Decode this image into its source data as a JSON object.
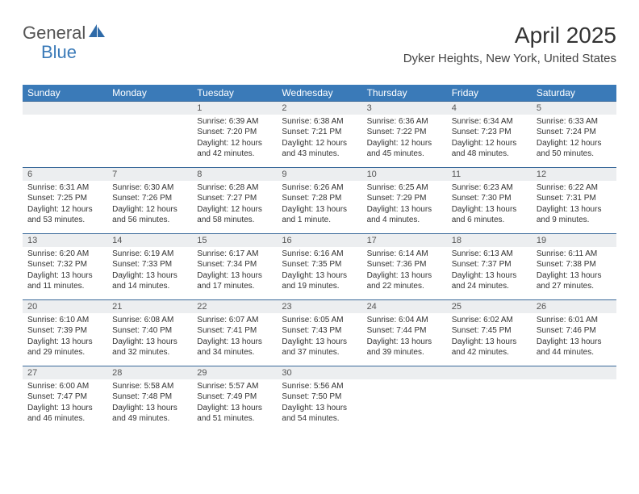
{
  "logo": {
    "part1": "General",
    "part2": "Blue"
  },
  "title": "April 2025",
  "subtitle": "Dyker Heights, New York, United States",
  "colors": {
    "header_bg": "#3a7ab8",
    "header_text": "#ffffff",
    "daynum_bg": "#eceef0",
    "border": "#3a6a9a",
    "text": "#333333",
    "logo_gray": "#555555",
    "logo_blue": "#3a7ab8"
  },
  "weekdays": [
    "Sunday",
    "Monday",
    "Tuesday",
    "Wednesday",
    "Thursday",
    "Friday",
    "Saturday"
  ],
  "weeks": [
    [
      null,
      null,
      {
        "n": "1",
        "sr": "6:39 AM",
        "ss": "7:20 PM",
        "dl": "12 hours and 42 minutes."
      },
      {
        "n": "2",
        "sr": "6:38 AM",
        "ss": "7:21 PM",
        "dl": "12 hours and 43 minutes."
      },
      {
        "n": "3",
        "sr": "6:36 AM",
        "ss": "7:22 PM",
        "dl": "12 hours and 45 minutes."
      },
      {
        "n": "4",
        "sr": "6:34 AM",
        "ss": "7:23 PM",
        "dl": "12 hours and 48 minutes."
      },
      {
        "n": "5",
        "sr": "6:33 AM",
        "ss": "7:24 PM",
        "dl": "12 hours and 50 minutes."
      }
    ],
    [
      {
        "n": "6",
        "sr": "6:31 AM",
        "ss": "7:25 PM",
        "dl": "12 hours and 53 minutes."
      },
      {
        "n": "7",
        "sr": "6:30 AM",
        "ss": "7:26 PM",
        "dl": "12 hours and 56 minutes."
      },
      {
        "n": "8",
        "sr": "6:28 AM",
        "ss": "7:27 PM",
        "dl": "12 hours and 58 minutes."
      },
      {
        "n": "9",
        "sr": "6:26 AM",
        "ss": "7:28 PM",
        "dl": "13 hours and 1 minute."
      },
      {
        "n": "10",
        "sr": "6:25 AM",
        "ss": "7:29 PM",
        "dl": "13 hours and 4 minutes."
      },
      {
        "n": "11",
        "sr": "6:23 AM",
        "ss": "7:30 PM",
        "dl": "13 hours and 6 minutes."
      },
      {
        "n": "12",
        "sr": "6:22 AM",
        "ss": "7:31 PM",
        "dl": "13 hours and 9 minutes."
      }
    ],
    [
      {
        "n": "13",
        "sr": "6:20 AM",
        "ss": "7:32 PM",
        "dl": "13 hours and 11 minutes."
      },
      {
        "n": "14",
        "sr": "6:19 AM",
        "ss": "7:33 PM",
        "dl": "13 hours and 14 minutes."
      },
      {
        "n": "15",
        "sr": "6:17 AM",
        "ss": "7:34 PM",
        "dl": "13 hours and 17 minutes."
      },
      {
        "n": "16",
        "sr": "6:16 AM",
        "ss": "7:35 PM",
        "dl": "13 hours and 19 minutes."
      },
      {
        "n": "17",
        "sr": "6:14 AM",
        "ss": "7:36 PM",
        "dl": "13 hours and 22 minutes."
      },
      {
        "n": "18",
        "sr": "6:13 AM",
        "ss": "7:37 PM",
        "dl": "13 hours and 24 minutes."
      },
      {
        "n": "19",
        "sr": "6:11 AM",
        "ss": "7:38 PM",
        "dl": "13 hours and 27 minutes."
      }
    ],
    [
      {
        "n": "20",
        "sr": "6:10 AM",
        "ss": "7:39 PM",
        "dl": "13 hours and 29 minutes."
      },
      {
        "n": "21",
        "sr": "6:08 AM",
        "ss": "7:40 PM",
        "dl": "13 hours and 32 minutes."
      },
      {
        "n": "22",
        "sr": "6:07 AM",
        "ss": "7:41 PM",
        "dl": "13 hours and 34 minutes."
      },
      {
        "n": "23",
        "sr": "6:05 AM",
        "ss": "7:43 PM",
        "dl": "13 hours and 37 minutes."
      },
      {
        "n": "24",
        "sr": "6:04 AM",
        "ss": "7:44 PM",
        "dl": "13 hours and 39 minutes."
      },
      {
        "n": "25",
        "sr": "6:02 AM",
        "ss": "7:45 PM",
        "dl": "13 hours and 42 minutes."
      },
      {
        "n": "26",
        "sr": "6:01 AM",
        "ss": "7:46 PM",
        "dl": "13 hours and 44 minutes."
      }
    ],
    [
      {
        "n": "27",
        "sr": "6:00 AM",
        "ss": "7:47 PM",
        "dl": "13 hours and 46 minutes."
      },
      {
        "n": "28",
        "sr": "5:58 AM",
        "ss": "7:48 PM",
        "dl": "13 hours and 49 minutes."
      },
      {
        "n": "29",
        "sr": "5:57 AM",
        "ss": "7:49 PM",
        "dl": "13 hours and 51 minutes."
      },
      {
        "n": "30",
        "sr": "5:56 AM",
        "ss": "7:50 PM",
        "dl": "13 hours and 54 minutes."
      },
      null,
      null,
      null
    ]
  ],
  "labels": {
    "sunrise": "Sunrise:",
    "sunset": "Sunset:",
    "daylight": "Daylight:"
  }
}
